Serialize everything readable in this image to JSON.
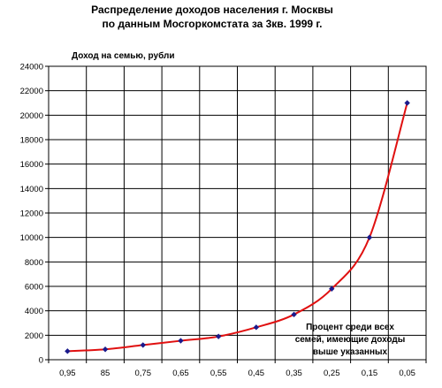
{
  "chart_data": {
    "type": "line",
    "title": [
      "Распределение доходов населения г. Москвы",
      "по данным Мосгоркомстата за 3кв. 1999 г."
    ],
    "ylabel": "Доход на семью, рубли",
    "xlabel": "",
    "x_categories": [
      "0,95",
      "85",
      "0,75",
      "0,65",
      "0,55",
      "0,45",
      "0,35",
      "0,25",
      "0,15",
      "0,05"
    ],
    "y_ticks": [
      "0",
      "2000",
      "4000",
      "6000",
      "8000",
      "10000",
      "12000",
      "14000",
      "16000",
      "18000",
      "20000",
      "22000",
      "24000"
    ],
    "ylim": [
      0,
      24000
    ],
    "grid": true,
    "series": [
      {
        "values": [
          700,
          850,
          1200,
          1550,
          1900,
          2650,
          3700,
          5800,
          10000,
          21000
        ],
        "line_color": "#e01010",
        "marker_color": "#1a1a8c"
      }
    ],
    "annotation": [
      "Процент среди всех",
      "семей, имеющие доходы",
      "выше указанных"
    ]
  }
}
